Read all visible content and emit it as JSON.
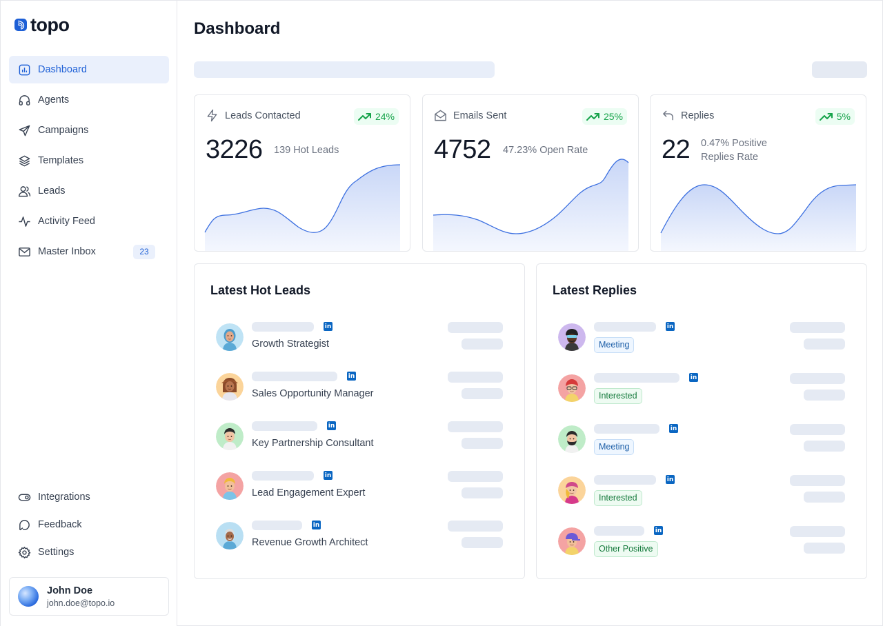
{
  "app": {
    "logo_text": "topo"
  },
  "page": {
    "title": "Dashboard"
  },
  "sidebar": {
    "items": [
      {
        "label": "Dashboard",
        "icon": "bar-chart-icon",
        "active": true
      },
      {
        "label": "Agents",
        "icon": "headphones-icon"
      },
      {
        "label": "Campaigns",
        "icon": "send-icon"
      },
      {
        "label": "Templates",
        "icon": "layers-icon"
      },
      {
        "label": "Leads",
        "icon": "users-icon"
      },
      {
        "label": "Activity Feed",
        "icon": "activity-icon"
      },
      {
        "label": "Master Inbox",
        "icon": "mail-icon",
        "badge": "23"
      }
    ],
    "bottom_items": [
      {
        "label": "Integrations",
        "icon": "toggle-icon"
      },
      {
        "label": "Feedback",
        "icon": "message-icon"
      },
      {
        "label": "Settings",
        "icon": "gear-icon"
      }
    ],
    "user": {
      "name": "John Doe",
      "email": "john.doe@topo.io"
    }
  },
  "stats": [
    {
      "label": "Leads Contacted",
      "icon": "zap-icon",
      "value": "3226",
      "sub": "139 Hot Leads",
      "trend": "24%"
    },
    {
      "label": "Emails Sent",
      "icon": "mail-open-icon",
      "value": "4752",
      "sub": "47.23% Open Rate",
      "trend": "25%"
    },
    {
      "label": "Replies",
      "icon": "reply-icon",
      "value": "22",
      "sub": "0.47% Positive Replies Rate",
      "trend": "5%"
    }
  ],
  "hot_leads": {
    "title": "Latest Hot Leads",
    "items": [
      {
        "role": "Growth Strategist"
      },
      {
        "role": "Sales Opportunity Manager"
      },
      {
        "role": "Key Partnership Consultant"
      },
      {
        "role": "Lead Engagement Expert"
      },
      {
        "role": "Revenue Growth Architect"
      }
    ]
  },
  "replies": {
    "title": "Latest Replies",
    "items": [
      {
        "tag": "Meeting"
      },
      {
        "tag": "Interested"
      },
      {
        "tag": "Meeting"
      },
      {
        "tag": "Interested"
      },
      {
        "tag": "Other Positive"
      }
    ]
  },
  "colors": {
    "accent": "#1d5fd6",
    "accent_bg": "#eaf0fc",
    "trend_green": "#16a34a",
    "chart_line": "#3b6fe0",
    "linkedin": "#0a66c2"
  }
}
